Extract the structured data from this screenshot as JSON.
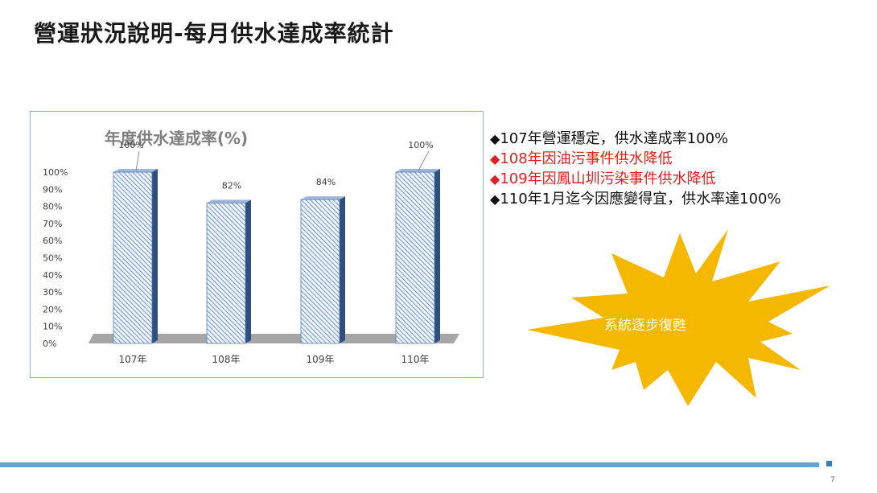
{
  "slide": {
    "title": "營運狀況說明-每月供水達成率統計",
    "page_number": "7"
  },
  "chart_data": {
    "type": "bar",
    "title": "年度供水達成率(%)",
    "categories": [
      "107年",
      "108年",
      "109年",
      "110年"
    ],
    "values": [
      100,
      82,
      84,
      100
    ],
    "value_labels": [
      "100%",
      "82%",
      "84%",
      "100%"
    ],
    "yticks": [
      "0%",
      "10%",
      "20%",
      "30%",
      "40%",
      "50%",
      "60%",
      "70%",
      "80%",
      "90%",
      "100%"
    ],
    "ylim": [
      0,
      100
    ],
    "grid": false,
    "colors": {
      "bar": "#4f7fc4",
      "bar_bg": "#eef3fa",
      "bar_side": "#2f4f7f",
      "floor": "#a6a6a6"
    }
  },
  "bullets": [
    {
      "marker": "◆",
      "text": "107年營運穩定，供水達成率100%",
      "color": "#111111"
    },
    {
      "marker": "◆",
      "text": "108年因油污事件供水降低",
      "color": "#e0201f"
    },
    {
      "marker": "◆",
      "text": "109年因鳳山圳污染事件供水降低",
      "color": "#e0201f"
    },
    {
      "marker": "◆",
      "text": "110年1月迄今因應變得宜，供水率達100%",
      "color": "#111111"
    }
  ],
  "callout": {
    "text": "系統逐步復甦",
    "color": "#f5b700"
  }
}
